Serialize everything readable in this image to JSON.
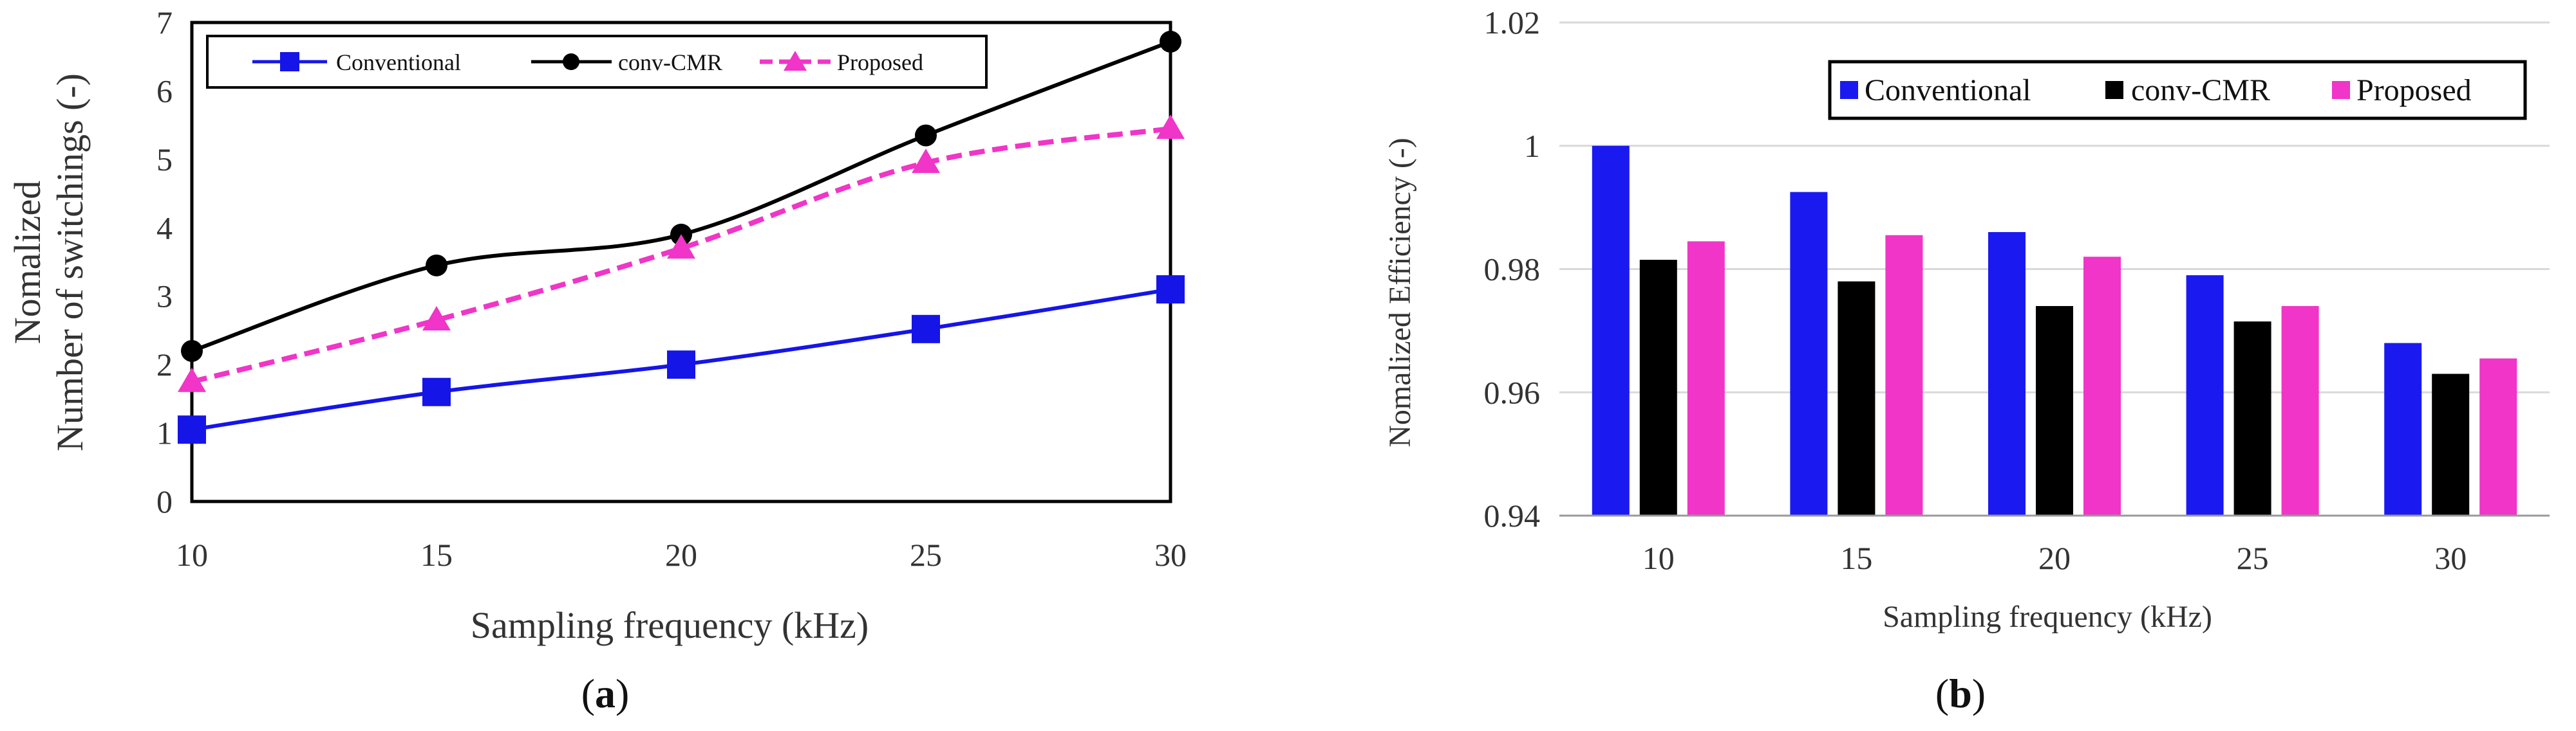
{
  "chart_data": [
    {
      "type": "line",
      "panel_label": "a",
      "xlabel": "Sampling frequency (kHz)",
      "ylabel_line1": "Nomalized",
      "ylabel_line2": "Number of switchings (-)",
      "x": [
        10,
        15,
        20,
        25,
        30
      ],
      "xlim": [
        10,
        30
      ],
      "ylim": [
        0,
        7
      ],
      "xticks": [
        "10",
        "15",
        "20",
        "25",
        "30"
      ],
      "yticks": [
        "0",
        "1",
        "2",
        "3",
        "4",
        "5",
        "6",
        "7"
      ],
      "grid": false,
      "legend_position": "top",
      "series": [
        {
          "name": "Conventional",
          "values": [
            1.05,
            1.6,
            2.0,
            2.52,
            3.1
          ],
          "color": "#1515e8",
          "marker": "square",
          "dash": "solid"
        },
        {
          "name": "conv-CMR",
          "values": [
            2.2,
            3.45,
            3.9,
            5.35,
            6.72
          ],
          "color": "#000000",
          "marker": "circle",
          "dash": "solid"
        },
        {
          "name": "Proposed",
          "values": [
            1.75,
            2.65,
            3.7,
            4.95,
            5.45
          ],
          "color": "#f035c8",
          "marker": "triangle",
          "dash": "dashed"
        }
      ]
    },
    {
      "type": "bar",
      "panel_label": "b",
      "xlabel": "Sampling frequency (kHz)",
      "ylabel": "Nomalized  Efficiency (-)",
      "categories": [
        "10",
        "15",
        "20",
        "25",
        "30"
      ],
      "ylim": [
        0.94,
        1.02
      ],
      "yticks": [
        "0.94",
        "0.96",
        "0.98",
        "1",
        "1.02"
      ],
      "grid": true,
      "legend_position": "top-right",
      "series": [
        {
          "name": "Conventional",
          "values": [
            1.0,
            0.9925,
            0.986,
            0.979,
            0.968
          ],
          "color": "#1a1af0"
        },
        {
          "name": "conv-CMR",
          "values": [
            0.9815,
            0.978,
            0.974,
            0.9715,
            0.963
          ],
          "color": "#000000"
        },
        {
          "name": "Proposed",
          "values": [
            0.9845,
            0.9855,
            0.982,
            0.974,
            0.9655
          ],
          "color": "#f035c8"
        }
      ]
    }
  ]
}
